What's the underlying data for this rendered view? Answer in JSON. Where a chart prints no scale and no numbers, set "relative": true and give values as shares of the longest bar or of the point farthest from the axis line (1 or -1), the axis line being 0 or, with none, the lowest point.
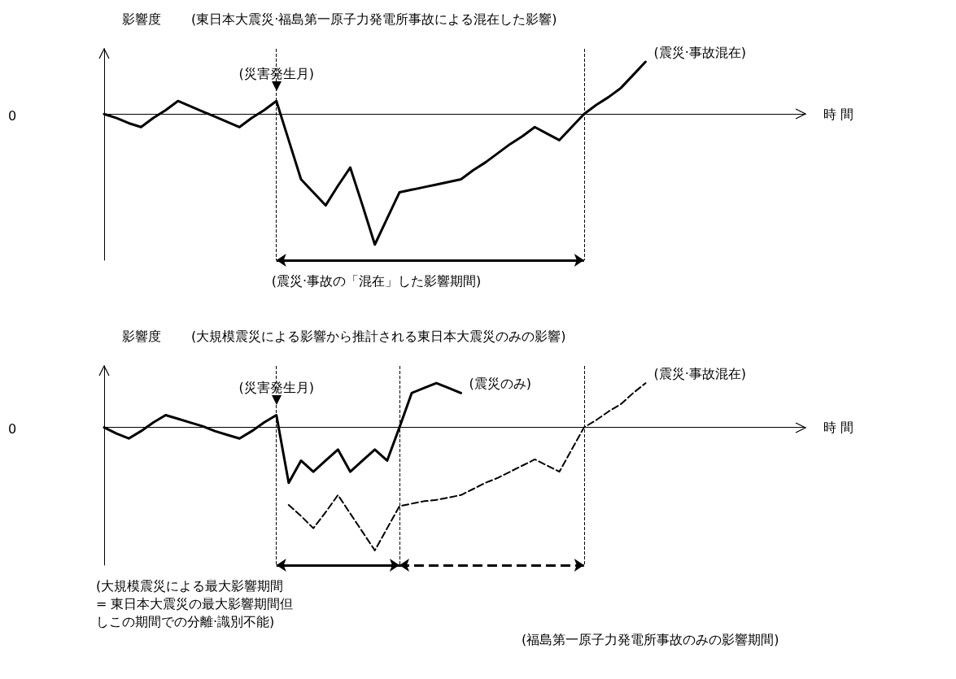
{
  "chart_data": [
    {
      "type": "line",
      "title": "(東日本大震災·福島第一原子力発電所事故による混在した影響)",
      "ylabel": "影響度",
      "xlabel": "時 間",
      "relative": true,
      "marker": "none",
      "grid": "x",
      "categories": [
        null,
        null,
        null,
        null,
        null,
        null,
        null,
        null,
        null,
        null,
        null,
        null,
        null,
        null,
        null,
        null,
        null,
        null,
        null,
        null,
        null,
        null,
        null,
        null,
        null,
        null,
        null,
        null,
        null,
        null,
        null,
        null,
        null,
        null,
        null,
        null,
        null,
        null,
        null,
        null,
        null,
        null,
        null,
        null,
        null,
        null,
        null,
        null,
        null,
        null,
        null,
        null,
        null,
        null,
        null,
        null,
        null,
        null
      ],
      "series": [
        {
          "name": "(震災·事故混在)",
          "color": "#000000",
          "line_style": "solid",
          "values": [
            0,
            -0.03,
            -0.07,
            -0.1,
            -0.03,
            0.03,
            0.1,
            0.06,
            0.02,
            -0.02,
            -0.06,
            -0.1,
            -0.03,
            0.03,
            0.1,
            -0.2,
            -0.5,
            -0.6,
            -0.7,
            -0.55,
            -0.41,
            -0.7,
            -1,
            -0.8,
            -0.6,
            -0.58,
            -0.56,
            -0.54,
            -0.52,
            -0.5,
            -0.43,
            -0.37,
            -0.3,
            -0.23,
            -0.17,
            -0.1,
            -0.15,
            -0.2,
            -0.1,
            0,
            0.07,
            0.13,
            0.2,
            0.3,
            0.4,
            null,
            null,
            null,
            null,
            null,
            null,
            null,
            null,
            null,
            null,
            null,
            null,
            null
          ]
        }
      ],
      "annotations": [
        "0",
        {
          "text": "(災害発生月)",
          "y": 0.1
        },
        "(震災·事故の「混在」した影響期間)"
      ]
    },
    {
      "type": "line",
      "title": "(大規模震災による影響から推計される東日本大震災のみの影響)",
      "ylabel": "影響度",
      "xlabel": "時 間",
      "relative": true,
      "marker": "none",
      "grid": "x",
      "categories": [
        null,
        null,
        null,
        null,
        null,
        null,
        null,
        null,
        null,
        null,
        null,
        null,
        null,
        null,
        null,
        null,
        null,
        null,
        null,
        null,
        null,
        null,
        null,
        null,
        null,
        null,
        null,
        null,
        null,
        null,
        null,
        null,
        null,
        null,
        null,
        null,
        null,
        null,
        null,
        null,
        null,
        null,
        null,
        null,
        null,
        null,
        null,
        null,
        null,
        null,
        null,
        null,
        null,
        null,
        null,
        null,
        null,
        null
      ],
      "series": [
        {
          "name": "(震災のみ)",
          "color": "#000000",
          "line_style": "solid",
          "values": [
            0,
            -0.05,
            -0.09,
            -0.03,
            0.04,
            0.1,
            0.07,
            0.04,
            0.01,
            -0.03,
            -0.06,
            -0.09,
            -0.03,
            0.04,
            0.1,
            -0.45,
            -0.27,
            -0.36,
            -0.27,
            -0.18,
            -0.36,
            -0.27,
            -0.18,
            -0.27,
            0,
            0.28,
            0.32,
            0.36,
            0.32,
            0.28,
            null,
            null,
            null,
            null,
            null,
            null,
            null,
            null,
            null,
            null,
            null,
            null,
            null,
            null,
            null,
            null,
            null,
            null,
            null,
            null,
            null,
            null,
            null,
            null,
            null,
            null,
            null,
            null
          ]
        },
        {
          "name": "(震災·事故混在)",
          "color": "#000000",
          "line_style": "dashed",
          "values": [
            null,
            null,
            null,
            null,
            null,
            null,
            null,
            null,
            null,
            null,
            null,
            null,
            null,
            null,
            null,
            -0.63,
            -0.72,
            -0.82,
            -0.69,
            -0.55,
            -0.7,
            -0.85,
            -1,
            -0.82,
            -0.64,
            -0.62,
            -0.6,
            -0.59,
            -0.57,
            -0.55,
            -0.5,
            -0.45,
            -0.41,
            -0.36,
            -0.31,
            -0.26,
            -0.31,
            -0.36,
            -0.18,
            0,
            0.06,
            0.13,
            0.19,
            0.28,
            0.36,
            null,
            null,
            null,
            null,
            null,
            null,
            null,
            null,
            null,
            null,
            null,
            null,
            null
          ]
        }
      ],
      "annotations": [
        "0",
        {
          "text": "(災害発生月)",
          "y": 0.1
        },
        "(大規模震災による最大影響期間 = 東日本大震災の最大影響期間但しこの期間での分離·識別不能)",
        "(福島第一原子力発電所事故のみの影響期間)"
      ]
    }
  ]
}
